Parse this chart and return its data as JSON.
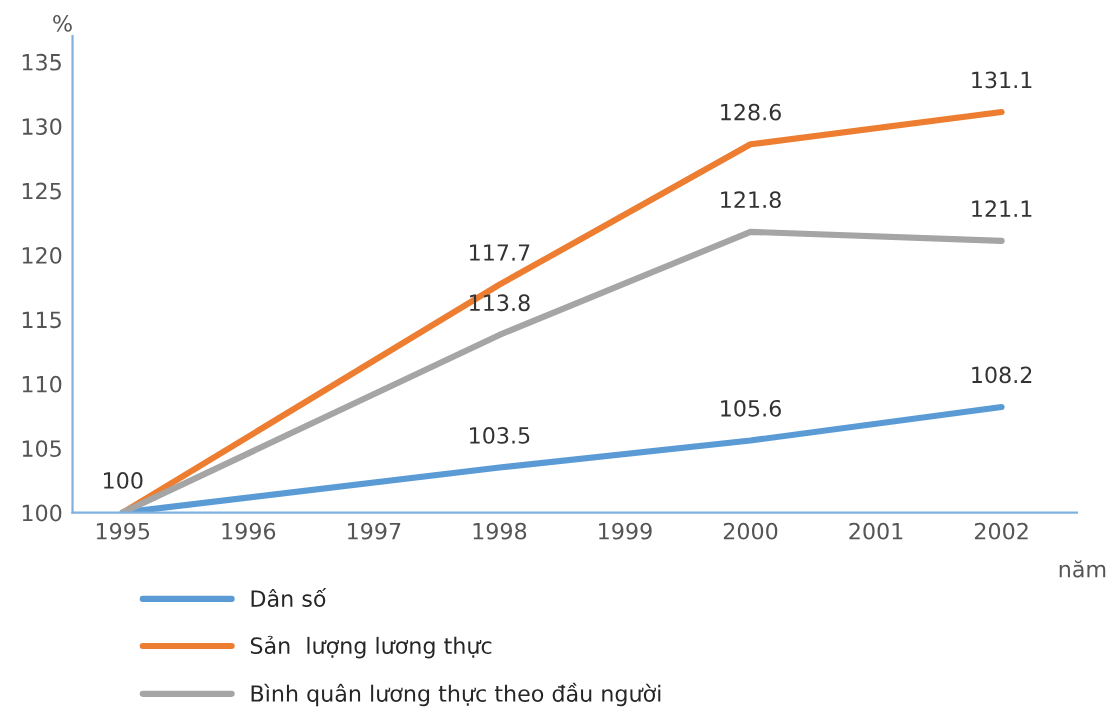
{
  "chart_data": {
    "type": "line",
    "ylabel": "%",
    "xlabel": "năm",
    "x": [
      1995,
      1998,
      2000,
      2002
    ],
    "series": [
      {
        "name": "Dân số",
        "color": "#5b9bd5",
        "values": [
          100,
          103.5,
          105.6,
          108.2
        ],
        "value_labels": [
          "100",
          "103.5",
          "105.6",
          "108.2"
        ]
      },
      {
        "name": "Sản  lượng lương thực",
        "color": "#ed7d31",
        "values": [
          100,
          117.7,
          128.6,
          131.1
        ],
        "value_labels": [
          null,
          "117.7",
          "128.6",
          "131.1"
        ]
      },
      {
        "name": "Bình quân lương thực theo đầu người",
        "color": "#a5a5a5",
        "values": [
          100,
          113.8,
          121.8,
          121.1
        ],
        "value_labels": [
          null,
          "113.8",
          "121.8",
          "121.1"
        ]
      }
    ],
    "xlim": [
      1994.6,
      2002.6
    ],
    "xticks": [
      1995,
      1996,
      1997,
      1998,
      1999,
      2000,
      2001,
      2002
    ],
    "ylim": [
      100,
      137
    ],
    "yticks": [
      100,
      105,
      110,
      115,
      120,
      125,
      130,
      135
    ],
    "grid": false,
    "legend": "bottom",
    "marker": "none",
    "line_style": "solid"
  }
}
